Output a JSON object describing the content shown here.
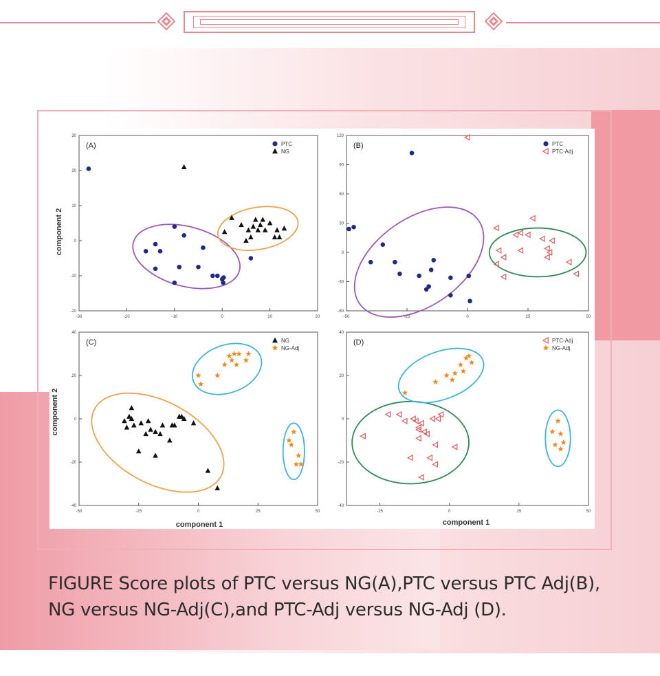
{
  "caption": {
    "line1": "FIGURE Score plots of PTC versus NG(A),PTC versus PTC Adj(B),",
    "line2": "NG versus NG-Adj(C),and PTC-Adj versus NG-Adj (D)."
  },
  "colors": {
    "ptc": "#1d2a8c",
    "ng": "#111111",
    "ptc_adj": "#e05a5a",
    "ng_adj": "#f08a1c",
    "ellipse_purple": "#9b59b6",
    "ellipse_orange": "#f0a14a",
    "ellipse_green": "#2e8b57",
    "ellipse_blue": "#3cb4e0",
    "accent": "#e8858f"
  },
  "icons": [
    "ornament-diamond-icon"
  ],
  "axis_labels": {
    "component2_top": "component 2",
    "component2_bottom": "component 2",
    "component1_left": "component 1",
    "component1_right": "component 1"
  },
  "chart_data": [
    {
      "type": "scatter",
      "panel": "(A)",
      "xlim": [
        -30,
        20
      ],
      "ylim": [
        -20,
        30
      ],
      "xticks": [
        "-30",
        "-20",
        "-10",
        "0",
        "10",
        "20"
      ],
      "yticks": [
        "-20",
        "-10",
        "0",
        "10",
        "20",
        "30"
      ],
      "xlabel": "",
      "ylabel": "component 2",
      "legend_position": "top-right",
      "series": [
        {
          "name": "PTC",
          "marker": "circle",
          "color": "#1d2a8c",
          "x": [
            -28,
            -16,
            -14,
            -13,
            -14,
            -10,
            -10,
            -9,
            -8,
            -5,
            -4,
            -2,
            -1,
            0,
            0.2,
            0.3,
            6
          ],
          "y": [
            20.5,
            -3,
            -1,
            -3,
            -8,
            4,
            -12,
            -7.5,
            1.5,
            -7.5,
            -2,
            -10,
            -10,
            -11,
            -12,
            -10.5,
            -5
          ]
        },
        {
          "name": "NG",
          "marker": "triangle",
          "color": "#111111",
          "x": [
            -8,
            0.5,
            2,
            4,
            5,
            5.5,
            6,
            6.5,
            7,
            7.5,
            8,
            8.5,
            9,
            10,
            11,
            11.5,
            12,
            13
          ],
          "y": [
            21,
            2.5,
            6.5,
            4.5,
            0,
            3,
            1,
            4,
            6,
            3,
            4.5,
            6,
            3,
            5,
            1,
            3,
            1,
            3.5
          ]
        }
      ],
      "ellipses": [
        {
          "color": "purple",
          "center": [
            -7.5,
            -4.5
          ],
          "rx": 11.5,
          "ry": 8.5,
          "angle": 15
        },
        {
          "color": "orange",
          "center": [
            7.5,
            3.5
          ],
          "rx": 8.5,
          "ry": 6,
          "angle": -10
        }
      ]
    },
    {
      "type": "scatter",
      "panel": "(B)",
      "xlim": [
        -50,
        50
      ],
      "ylim": [
        -60,
        120
      ],
      "xticks": [
        "-50",
        "-25",
        "0",
        "25",
        "50"
      ],
      "yticks": [
        "-60",
        "-30",
        "0",
        "30",
        "60",
        "90",
        "120"
      ],
      "xlabel": "",
      "ylabel": "",
      "legend_position": "top-right",
      "series": [
        {
          "name": "PTC",
          "marker": "circle",
          "color": "#1d2a8c",
          "x": [
            -49,
            -47,
            -23,
            -35,
            -40,
            -30,
            -28,
            -20,
            -17,
            -16,
            -15,
            -14,
            -7,
            -7,
            0.5,
            1
          ],
          "y": [
            24,
            26,
            102,
            8,
            -10,
            -10,
            -22,
            -24,
            -38,
            -35,
            -18,
            -8,
            -26,
            -44,
            -24,
            -50
          ]
        },
        {
          "name": "PTC-Adj",
          "marker": "triangle-left",
          "color": "#e05a5a",
          "x": [
            0,
            12,
            13,
            12,
            15,
            15,
            20,
            22,
            22,
            25,
            27,
            31,
            33,
            33,
            34,
            35,
            42,
            45
          ],
          "y": [
            118,
            25,
            2,
            -12,
            -25,
            -5,
            18,
            2,
            20,
            18,
            35,
            14,
            4,
            -5,
            0,
            12,
            -10,
            -22
          ]
        }
      ],
      "ellipses": [
        {
          "color": "purple",
          "center": [
            -20,
            -10
          ],
          "rx": 30,
          "ry": 45,
          "angle": -35
        },
        {
          "color": "green",
          "center": [
            29,
            0
          ],
          "rx": 20,
          "ry": 25,
          "angle": 0
        }
      ]
    },
    {
      "type": "scatter",
      "panel": "(C)",
      "xlim": [
        -50,
        50
      ],
      "ylim": [
        -40,
        40
      ],
      "xticks": [
        "-50",
        "-25",
        "0",
        "25",
        "50"
      ],
      "yticks": [
        "-40",
        "-20",
        "0",
        "20",
        "40"
      ],
      "xlabel": "component 1",
      "ylabel": "component 2",
      "legend_position": "top-right",
      "series": [
        {
          "name": "NG",
          "marker": "triangle",
          "color": "#111111",
          "x": [
            -31,
            -30,
            -29,
            -28,
            -28,
            -27,
            -25,
            -24,
            -22,
            -21,
            -20,
            -18,
            -18,
            -16,
            -15,
            -12,
            -11,
            -10,
            -8,
            -7,
            -6,
            -2,
            4,
            8
          ],
          "y": [
            -1,
            -4,
            1,
            0,
            5,
            -3,
            -15,
            -2,
            -7,
            -1,
            -5,
            -6,
            -17,
            -7,
            -3,
            -10,
            -3,
            -3,
            1,
            1,
            0,
            -2,
            -24,
            -32
          ]
        },
        {
          "name": "NG-Adj",
          "marker": "star",
          "color": "#f08a1c",
          "x": [
            0,
            1,
            8,
            11,
            13,
            14,
            15,
            16,
            17,
            20,
            21,
            38,
            39,
            40,
            41,
            42,
            43
          ],
          "y": [
            20,
            16,
            20,
            25,
            29,
            27,
            30,
            25,
            30,
            27,
            30,
            -10,
            -12,
            -6,
            -21,
            -17,
            -21
          ]
        }
      ],
      "ellipses": [
        {
          "color": "orange",
          "center": [
            -17,
            -11
          ],
          "rx": 30,
          "ry": 19,
          "angle": 28
        },
        {
          "color": "blue",
          "center": [
            12,
            23
          ],
          "rx": 15,
          "ry": 11,
          "angle": -20
        },
        {
          "color": "blue",
          "center": [
            40,
            -15
          ],
          "rx": 4.5,
          "ry": 13,
          "angle": 0
        }
      ]
    },
    {
      "type": "scatter",
      "panel": "(D)",
      "xlim": [
        -37,
        50
      ],
      "ylim": [
        -40,
        40
      ],
      "xticks": [
        "-25",
        "0",
        "25",
        "50"
      ],
      "yticks": [
        "-40",
        "-20",
        "0",
        "20",
        "40"
      ],
      "xlabel": "component 1",
      "ylabel": "",
      "legend_position": "top-right",
      "series": [
        {
          "name": "PTC-Adj",
          "marker": "triangle-left",
          "color": "#e05a5a",
          "x": [
            -31,
            -22,
            -18,
            -16,
            -14,
            -13,
            -12,
            -11,
            -11,
            -11,
            -10,
            -10,
            -9,
            -8,
            -7,
            -6,
            -5,
            -5,
            -4,
            -3,
            2
          ],
          "y": [
            -8,
            2,
            2,
            -1,
            -18,
            0,
            -1,
            -5,
            -9,
            -4,
            -2,
            -27,
            -6,
            -7,
            -18,
            0,
            -12,
            -21,
            0,
            2,
            -13
          ]
        },
        {
          "name": "NG-Adj",
          "marker": "star",
          "color": "#f08a1c",
          "x": [
            -16,
            -5,
            -1,
            1,
            2,
            4,
            5,
            6,
            7,
            8,
            37,
            38,
            39,
            40,
            40,
            41
          ],
          "y": [
            12,
            17,
            20,
            18,
            21,
            25,
            22,
            28,
            29,
            26,
            -6,
            -12,
            -1,
            -14,
            -7,
            -11
          ]
        }
      ],
      "ellipses": [
        {
          "color": "green",
          "center": [
            -14,
            -11
          ],
          "rx": 21,
          "ry": 19,
          "angle": 0
        },
        {
          "color": "blue",
          "center": [
            -3,
            20
          ],
          "rx": 16,
          "ry": 11,
          "angle": -20
        },
        {
          "color": "blue",
          "center": [
            39,
            -9
          ],
          "rx": 4.5,
          "ry": 13,
          "angle": 0
        }
      ]
    }
  ]
}
